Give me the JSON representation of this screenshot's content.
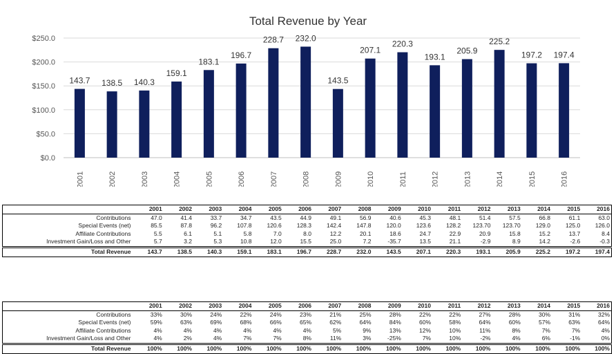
{
  "chart_data": {
    "type": "bar",
    "title": "Total Revenue by Year",
    "categories": [
      "2001",
      "2002",
      "2003",
      "2004",
      "2005",
      "2006",
      "2007",
      "2008",
      "2009",
      "2010",
      "2011",
      "2012",
      "2013",
      "2014",
      "2015",
      "2016"
    ],
    "values": [
      143.7,
      138.5,
      140.3,
      159.1,
      183.1,
      196.7,
      228.7,
      232.0,
      143.5,
      207.1,
      220.3,
      193.1,
      205.9,
      225.2,
      197.2,
      197.4
    ],
    "data_labels": [
      "143.7",
      "138.5",
      "140.3",
      "159.1",
      "183.1",
      "196.7",
      "228.7",
      "232.0",
      "143.5",
      "207.1",
      "220.3",
      "193.1",
      "205.9",
      "225.2",
      "197.2",
      "197.4"
    ],
    "ylim": [
      0,
      250
    ],
    "yticks": [
      "$0.0",
      "$50.0",
      "$100.0",
      "$150.0",
      "$200.0",
      "$250.0"
    ],
    "grid": true,
    "legend": "none",
    "bar_color": "#0f1f5c"
  },
  "table1": {
    "corner": "",
    "years": [
      "2001",
      "2002",
      "2003",
      "2004",
      "2005",
      "2006",
      "2007",
      "2008",
      "2009",
      "2010",
      "2011",
      "2012",
      "2013",
      "2014",
      "2015",
      "2016"
    ],
    "rows": [
      {
        "label": "Contributions",
        "values": [
          "47.0",
          "41.4",
          "33.7",
          "34.7",
          "43.5",
          "44.9",
          "49.1",
          "56.9",
          "40.6",
          "45.3",
          "48.1",
          "51.4",
          "57.5",
          "66.8",
          "61.1",
          "63.0"
        ]
      },
      {
        "label": "Special Events (net)",
        "values": [
          "85.5",
          "87.8",
          "96.2",
          "107.8",
          "120.6",
          "128.3",
          "142.4",
          "147.8",
          "120.0",
          "123.6",
          "128.2",
          "123.70",
          "123.70",
          "129.0",
          "125.0",
          "126.0"
        ]
      },
      {
        "label": "Affiliate Contributions",
        "values": [
          "5.5",
          "6.1",
          "5.1",
          "5.8",
          "7.0",
          "8.0",
          "12.2",
          "20.1",
          "18.6",
          "24.7",
          "22.9",
          "20.9",
          "15.8",
          "15.2",
          "13.7",
          "8.4"
        ]
      },
      {
        "label": "Investment Gain/Loss and Other",
        "values": [
          "5.7",
          "3.2",
          "5.3",
          "10.8",
          "12.0",
          "15.5",
          "25.0",
          "7.2",
          "-35.7",
          "13.5",
          "21.1",
          "-2.9",
          "8.9",
          "14.2",
          "-2.6",
          "-0.3"
        ]
      }
    ],
    "total": {
      "label": "Total Revenue",
      "values": [
        "143.7",
        "138.5",
        "140.3",
        "159.1",
        "183.1",
        "196.7",
        "228.7",
        "232.0",
        "143.5",
        "207.1",
        "220.3",
        "193.1",
        "205.9",
        "225.2",
        "197.2",
        "197.4"
      ]
    }
  },
  "table2": {
    "corner": "",
    "years": [
      "2001",
      "2002",
      "2003",
      "2004",
      "2005",
      "2006",
      "2007",
      "2008",
      "2009",
      "2010",
      "2011",
      "2012",
      "2013",
      "2014",
      "2015",
      "2016"
    ],
    "rows": [
      {
        "label": "Contributions",
        "values": [
          "33%",
          "30%",
          "24%",
          "22%",
          "24%",
          "23%",
          "21%",
          "25%",
          "28%",
          "22%",
          "22%",
          "27%",
          "28%",
          "30%",
          "31%",
          "32%"
        ]
      },
      {
        "label": "Special Events (net)",
        "values": [
          "59%",
          "63%",
          "69%",
          "68%",
          "66%",
          "65%",
          "62%",
          "64%",
          "84%",
          "60%",
          "58%",
          "64%",
          "60%",
          "57%",
          "63%",
          "64%"
        ]
      },
      {
        "label": "Affiliate Contributions",
        "values": [
          "4%",
          "4%",
          "4%",
          "4%",
          "4%",
          "4%",
          "5%",
          "9%",
          "13%",
          "12%",
          "10%",
          "11%",
          "8%",
          "7%",
          "7%",
          "4%"
        ]
      },
      {
        "label": "Investment Gain/Loss and Other",
        "values": [
          "4%",
          "2%",
          "4%",
          "7%",
          "7%",
          "8%",
          "11%",
          "3%",
          "-25%",
          "7%",
          "10%",
          "-2%",
          "4%",
          "6%",
          "-1%",
          "0%"
        ]
      }
    ],
    "total": {
      "label": "Total Revenue",
      "values": [
        "100%",
        "100%",
        "100%",
        "100%",
        "100%",
        "100%",
        "100%",
        "100%",
        "100%",
        "100%",
        "100%",
        "100%",
        "100%",
        "100%",
        "100%",
        "100%"
      ]
    }
  }
}
